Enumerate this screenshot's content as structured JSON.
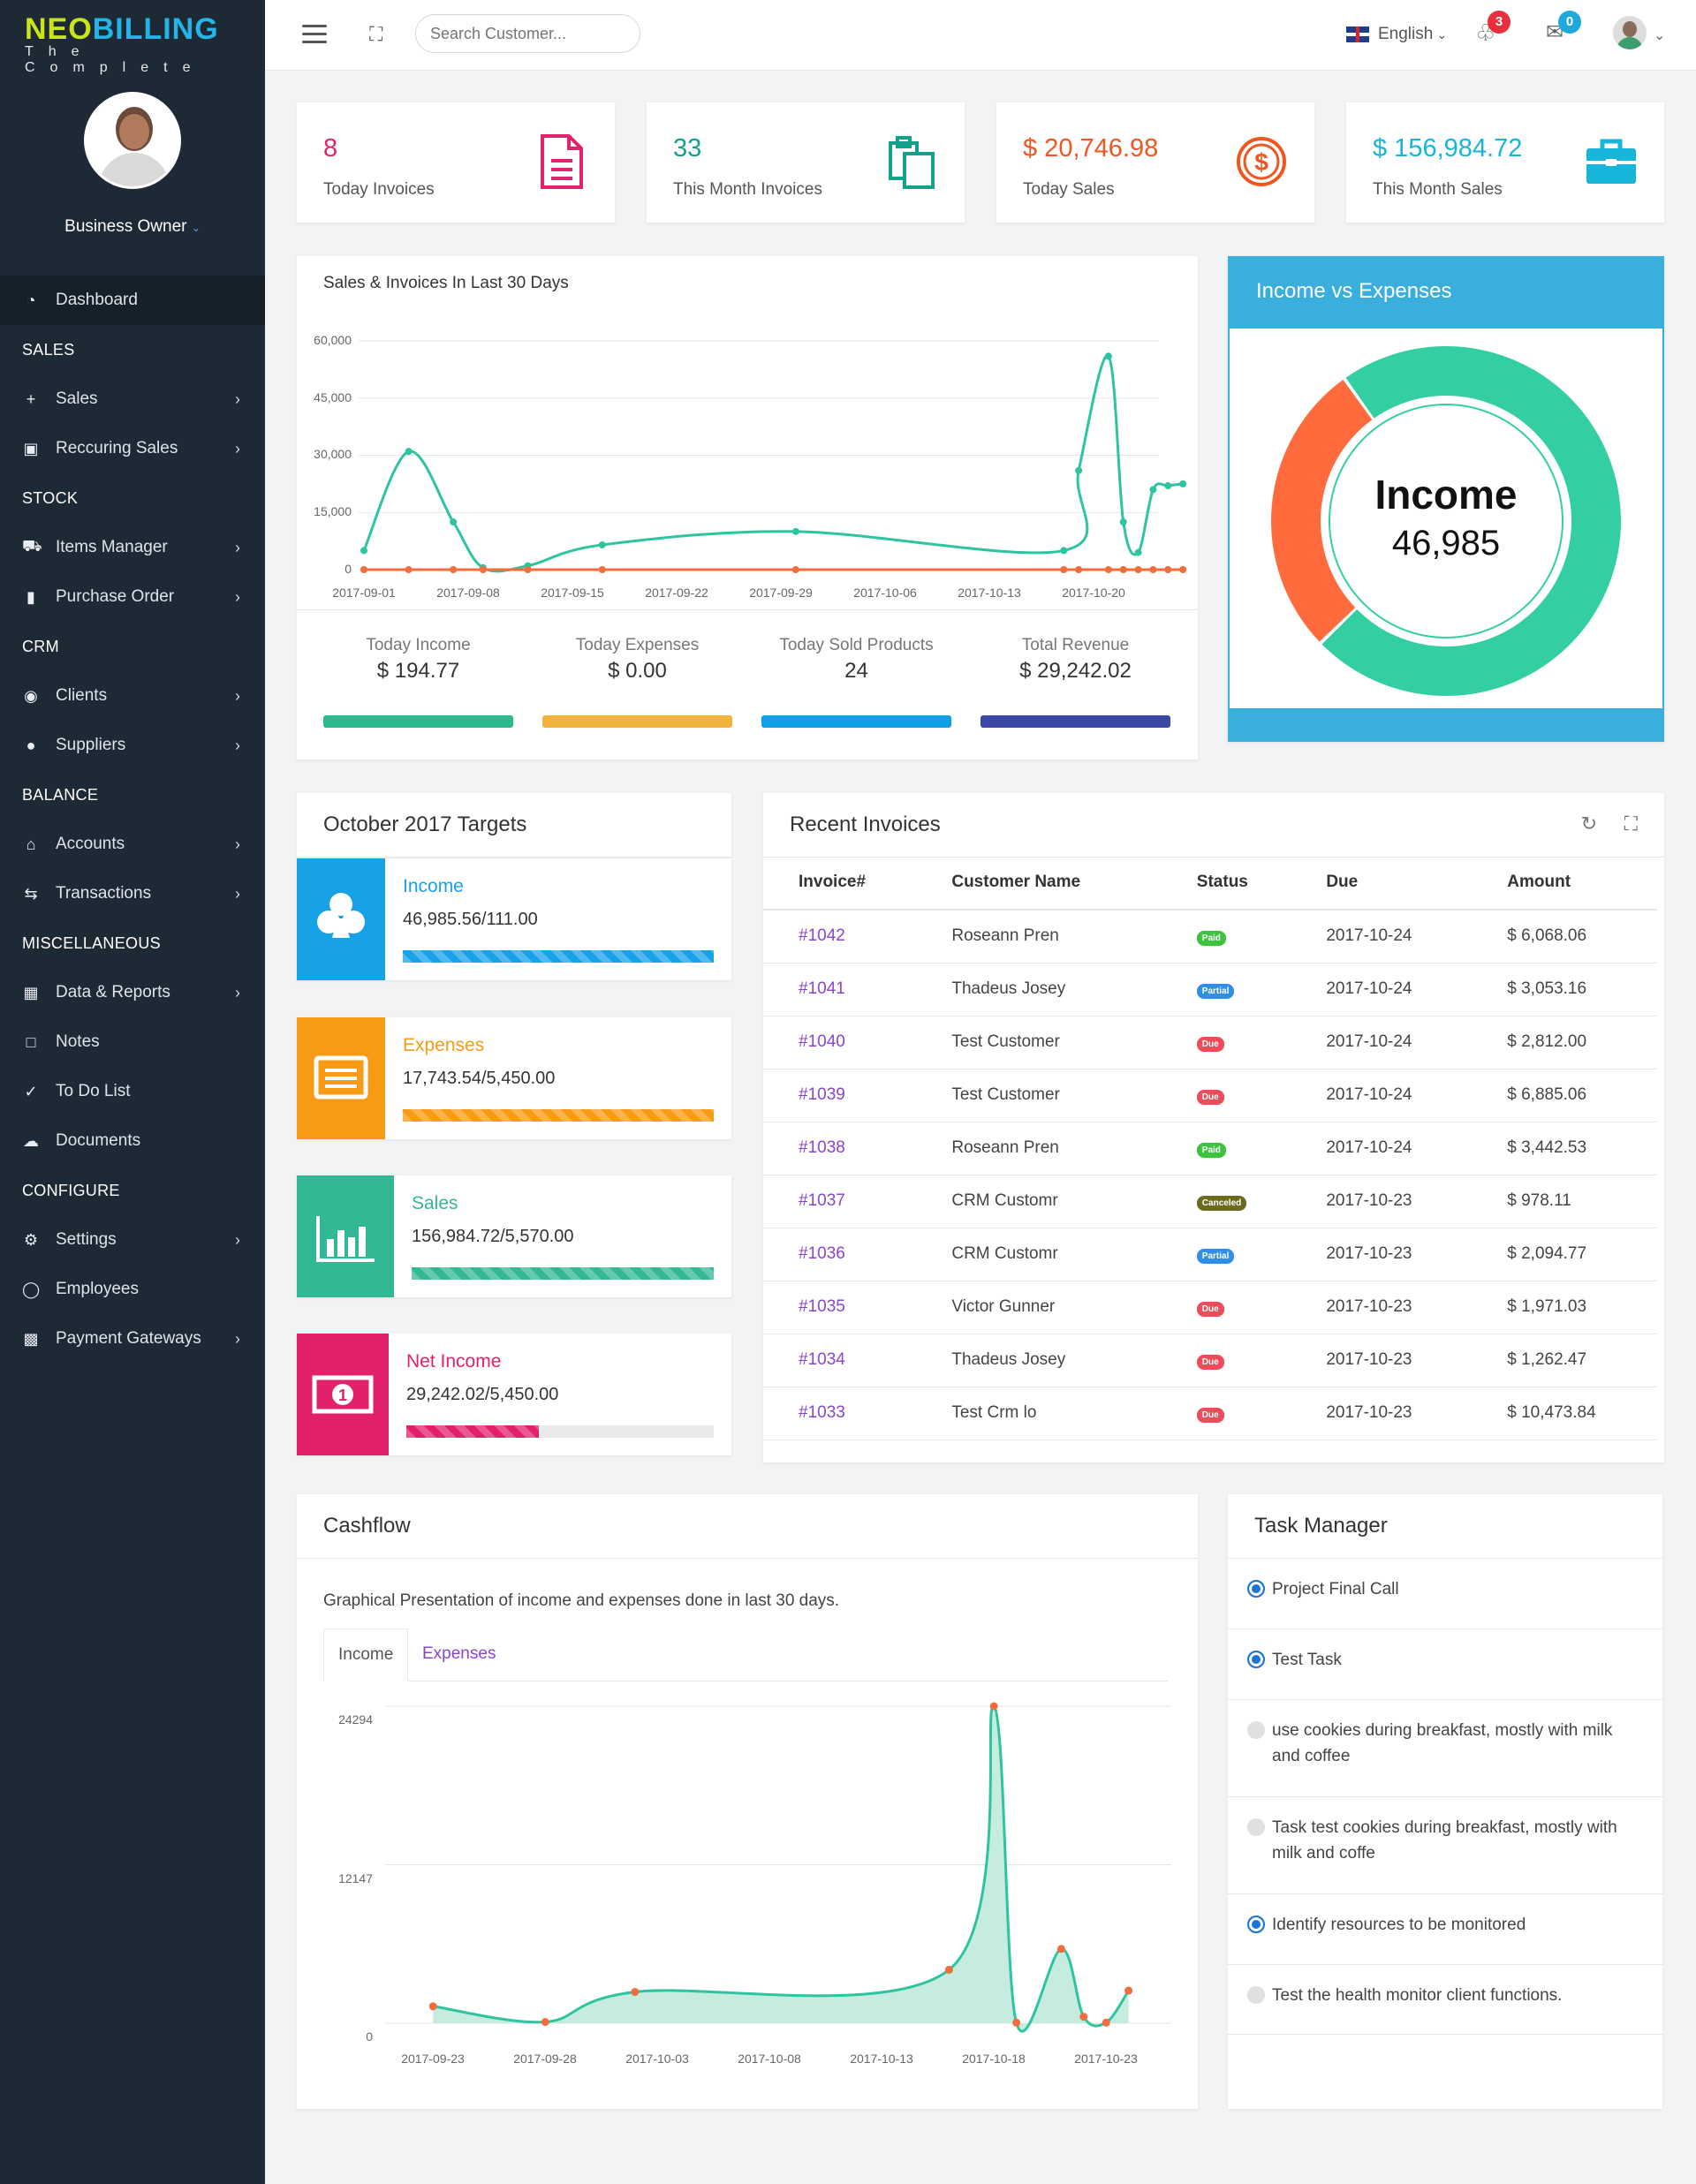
{
  "brand": {
    "name_a": "NEO",
    "name_b": "BILLING",
    "tagline": "The Complete"
  },
  "profile": {
    "role": "Business Owner"
  },
  "sidebar": {
    "dashboard": "Dashboard",
    "sections": {
      "sales": "SALES",
      "stock": "STOCK",
      "crm": "CRM",
      "balance": "BALANCE",
      "misc": "MISCELLANEOUS",
      "configure": "CONFIGURE"
    },
    "items": {
      "sales": "Sales",
      "recurring": "Reccuring Sales",
      "items_manager": "Items Manager",
      "purchase_order": "Purchase Order",
      "clients": "Clients",
      "suppliers": "Suppliers",
      "accounts": "Accounts",
      "transactions": "Transactions",
      "data_reports": "Data & Reports",
      "notes": "Notes",
      "todo": "To Do List",
      "documents": "Documents",
      "settings": "Settings",
      "employees": "Employees",
      "payment_gateways": "Payment Gateways"
    }
  },
  "topbar": {
    "search_placeholder": "Search Customer...",
    "language": "English",
    "notifications": "3",
    "messages": "0"
  },
  "stats": [
    {
      "value": "8",
      "label": "Today Invoices",
      "color": "#e0236c"
    },
    {
      "value": "33",
      "label": "This Month Invoices",
      "color": "#15a08c"
    },
    {
      "value": "$ 20,746.98",
      "label": "Today Sales",
      "color": "#f0561f"
    },
    {
      "value": "$ 156,984.72",
      "label": "This Month Sales",
      "color": "#17b5d8"
    }
  ],
  "sales_chart": {
    "title": "Sales & Invoices In Last 30 Days",
    "y_ticks": [
      "60,000",
      "45,000",
      "30,000",
      "15,000",
      "0"
    ],
    "x_ticks": [
      "2017-09-01",
      "2017-09-08",
      "2017-09-15",
      "2017-09-22",
      "2017-09-29",
      "2017-10-06",
      "2017-10-13",
      "2017-10-20"
    ],
    "kpis": [
      {
        "label": "Today Income",
        "value": "$ 194.77",
        "color": "#2db98e"
      },
      {
        "label": "Today Expenses",
        "value": "$ 0.00",
        "color": "#f2b33d"
      },
      {
        "label": "Today Sold Products",
        "value": "24",
        "color": "#10a0e8"
      },
      {
        "label": "Total Revenue",
        "value": "$ 29,242.02",
        "color": "#3c48a4"
      }
    ]
  },
  "income_vs_expenses": {
    "title": "Income vs Expenses",
    "center_label": "Income",
    "center_value": "46,985",
    "income": 46985.56,
    "expenses": 17743.54
  },
  "targets": {
    "title": "October 2017 Targets",
    "items": [
      {
        "name": "Income",
        "value": "46,985.56/111.00",
        "percent": 100,
        "color": "#17a2e8"
      },
      {
        "name": "Expenses",
        "value": "17,743.54/5,450.00",
        "percent": 100,
        "color": "#f89a14"
      },
      {
        "name": "Sales",
        "value": "156,984.72/5,570.00",
        "percent": 100,
        "color": "#33b895"
      },
      {
        "name": "Net Income",
        "value": "29,242.02/5,450.00",
        "percent": 43,
        "color": "#e2216a"
      }
    ]
  },
  "recent_invoices": {
    "title": "Recent Invoices",
    "columns": [
      "Invoice#",
      "Customer Name",
      "Status",
      "Due",
      "Amount"
    ],
    "rows": [
      [
        "#1042",
        "Roseann Pren",
        "Paid",
        "2017-10-24",
        "$ 6,068.06"
      ],
      [
        "#1041",
        "Thadeus Josey",
        "Partial",
        "2017-10-24",
        "$ 3,053.16"
      ],
      [
        "#1040",
        "Test Customer",
        "Due",
        "2017-10-24",
        "$ 2,812.00"
      ],
      [
        "#1039",
        "Test Customer",
        "Due",
        "2017-10-24",
        "$ 6,885.06"
      ],
      [
        "#1038",
        "Roseann Pren",
        "Paid",
        "2017-10-24",
        "$ 3,442.53"
      ],
      [
        "#1037",
        "CRM Customr",
        "Canceled",
        "2017-10-23",
        "$ 978.11"
      ],
      [
        "#1036",
        "CRM Customr",
        "Partial",
        "2017-10-23",
        "$ 2,094.77"
      ],
      [
        "#1035",
        "Victor Gunner",
        "Due",
        "2017-10-23",
        "$ 1,971.03"
      ],
      [
        "#1034",
        "Thadeus Josey",
        "Due",
        "2017-10-23",
        "$ 1,262.47"
      ],
      [
        "#1033",
        "Test Crm lo",
        "Due",
        "2017-10-23",
        "$ 10,473.84"
      ]
    ]
  },
  "cashflow": {
    "title": "Cashflow",
    "description": "Graphical Presentation of income and expenses done in last 30 days.",
    "tabs": [
      "Income",
      "Expenses"
    ],
    "y_ticks": [
      "24294",
      "12147",
      "0"
    ],
    "x_ticks": [
      "2017-09-23",
      "2017-09-28",
      "2017-10-03",
      "2017-10-08",
      "2017-10-13",
      "2017-10-18",
      "2017-10-23"
    ]
  },
  "tasks": {
    "title": "Task Manager",
    "items": [
      {
        "text": "Project Final Call",
        "done": true
      },
      {
        "text": "Test Task",
        "done": true
      },
      {
        "text": "use cookies during breakfast, mostly with milk and coffee",
        "done": false
      },
      {
        "text": "Task test cookies during breakfast, mostly with milk and coffe",
        "done": false
      },
      {
        "text": "Identify resources to be monitored",
        "done": true
      },
      {
        "text": "Test the health monitor client functions.",
        "done": false
      }
    ]
  },
  "chart_data": [
    {
      "type": "line",
      "title": "Sales & Invoices In Last 30 Days",
      "x": [
        "2017-09-01",
        "2017-09-04",
        "2017-09-07",
        "2017-09-09",
        "2017-09-12",
        "2017-09-17",
        "2017-09-30",
        "2017-10-18",
        "2017-10-19",
        "2017-10-21",
        "2017-10-22",
        "2017-10-23",
        "2017-10-24",
        "2017-10-25",
        "2017-10-26"
      ],
      "series": [
        {
          "name": "Sales",
          "values": [
            5000,
            31000,
            12500,
            500,
            1000,
            6500,
            10000,
            5000,
            26000,
            56000,
            12500,
            4500,
            21000,
            22000,
            22500
          ]
        },
        {
          "name": "Invoices",
          "values": [
            0,
            0,
            0,
            0,
            0,
            0,
            0,
            0,
            0,
            0,
            0,
            0,
            0,
            0,
            0
          ]
        }
      ],
      "ylim": [
        0,
        60000
      ]
    },
    {
      "type": "pie",
      "title": "Income vs Expenses",
      "categories": [
        "Income",
        "Expenses"
      ],
      "values": [
        46985.56,
        17743.54
      ]
    },
    {
      "type": "area",
      "title": "Cashflow",
      "x": [
        "2017-09-23",
        "2017-09-28",
        "2017-10-02",
        "2017-10-16",
        "2017-10-18",
        "2017-10-19",
        "2017-10-21",
        "2017-10-22",
        "2017-10-23",
        "2017-10-24"
      ],
      "series": [
        {
          "name": "Income",
          "values": [
            1300,
            100,
            2400,
            4100,
            24294,
            50,
            5700,
            500,
            50,
            2500
          ]
        }
      ],
      "ylim": [
        0,
        24294
      ]
    }
  ]
}
